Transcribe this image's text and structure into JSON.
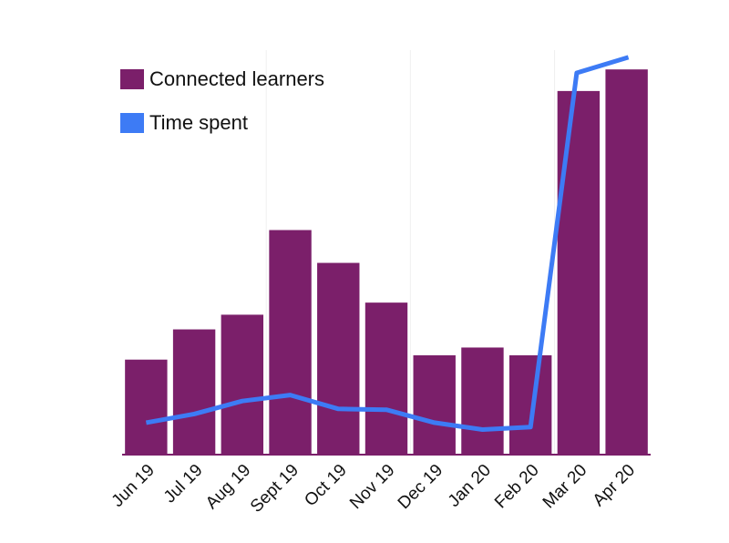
{
  "chart_data": {
    "type": "bar",
    "categories": [
      "Jun 19",
      "Jul 19",
      "Aug 19",
      "Sept 19",
      "Oct 19",
      "Nov 19",
      "Dec 19",
      "Jan 20",
      "Feb 20",
      "Mar 20",
      "Apr 20"
    ],
    "series": [
      {
        "name": "Connected learners",
        "kind": "bar",
        "color": "#7B1F6A",
        "values": [
          110,
          145,
          162,
          260,
          222,
          176,
          115,
          124,
          115,
          421,
          446
        ]
      },
      {
        "name": "Time spent",
        "kind": "line",
        "color": "#3D7BF5",
        "values": [
          37,
          47,
          62,
          69,
          53,
          52,
          37,
          29,
          32,
          442,
          460
        ]
      }
    ],
    "ylim": [
      0,
      500
    ],
    "grid": false,
    "legend_position": "top-left",
    "title": "",
    "xlabel": "",
    "ylabel": ""
  }
}
